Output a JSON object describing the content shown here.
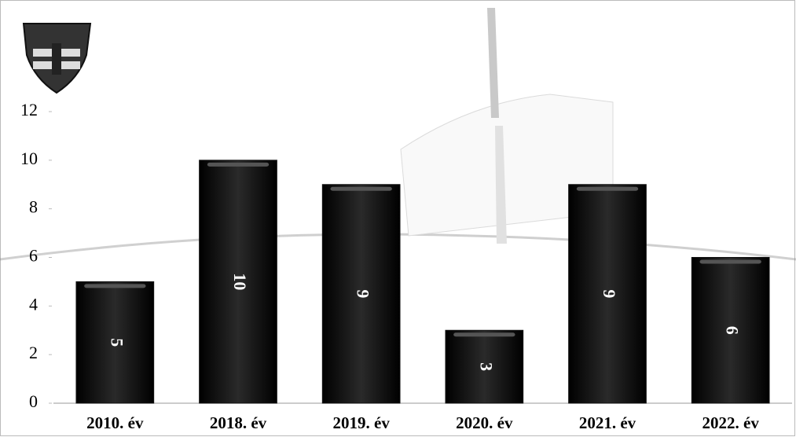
{
  "chart_data": {
    "type": "bar",
    "categories": [
      "2010. év",
      "2018. év",
      "2019. év",
      "2020. év",
      "2021. év",
      "2022. év"
    ],
    "values": [
      5,
      10,
      9,
      3,
      9,
      6
    ],
    "color": "#111111",
    "ylim": [
      0,
      12
    ],
    "yticks": [
      0,
      2,
      4,
      6,
      8,
      10,
      12
    ],
    "grid": false
  }
}
